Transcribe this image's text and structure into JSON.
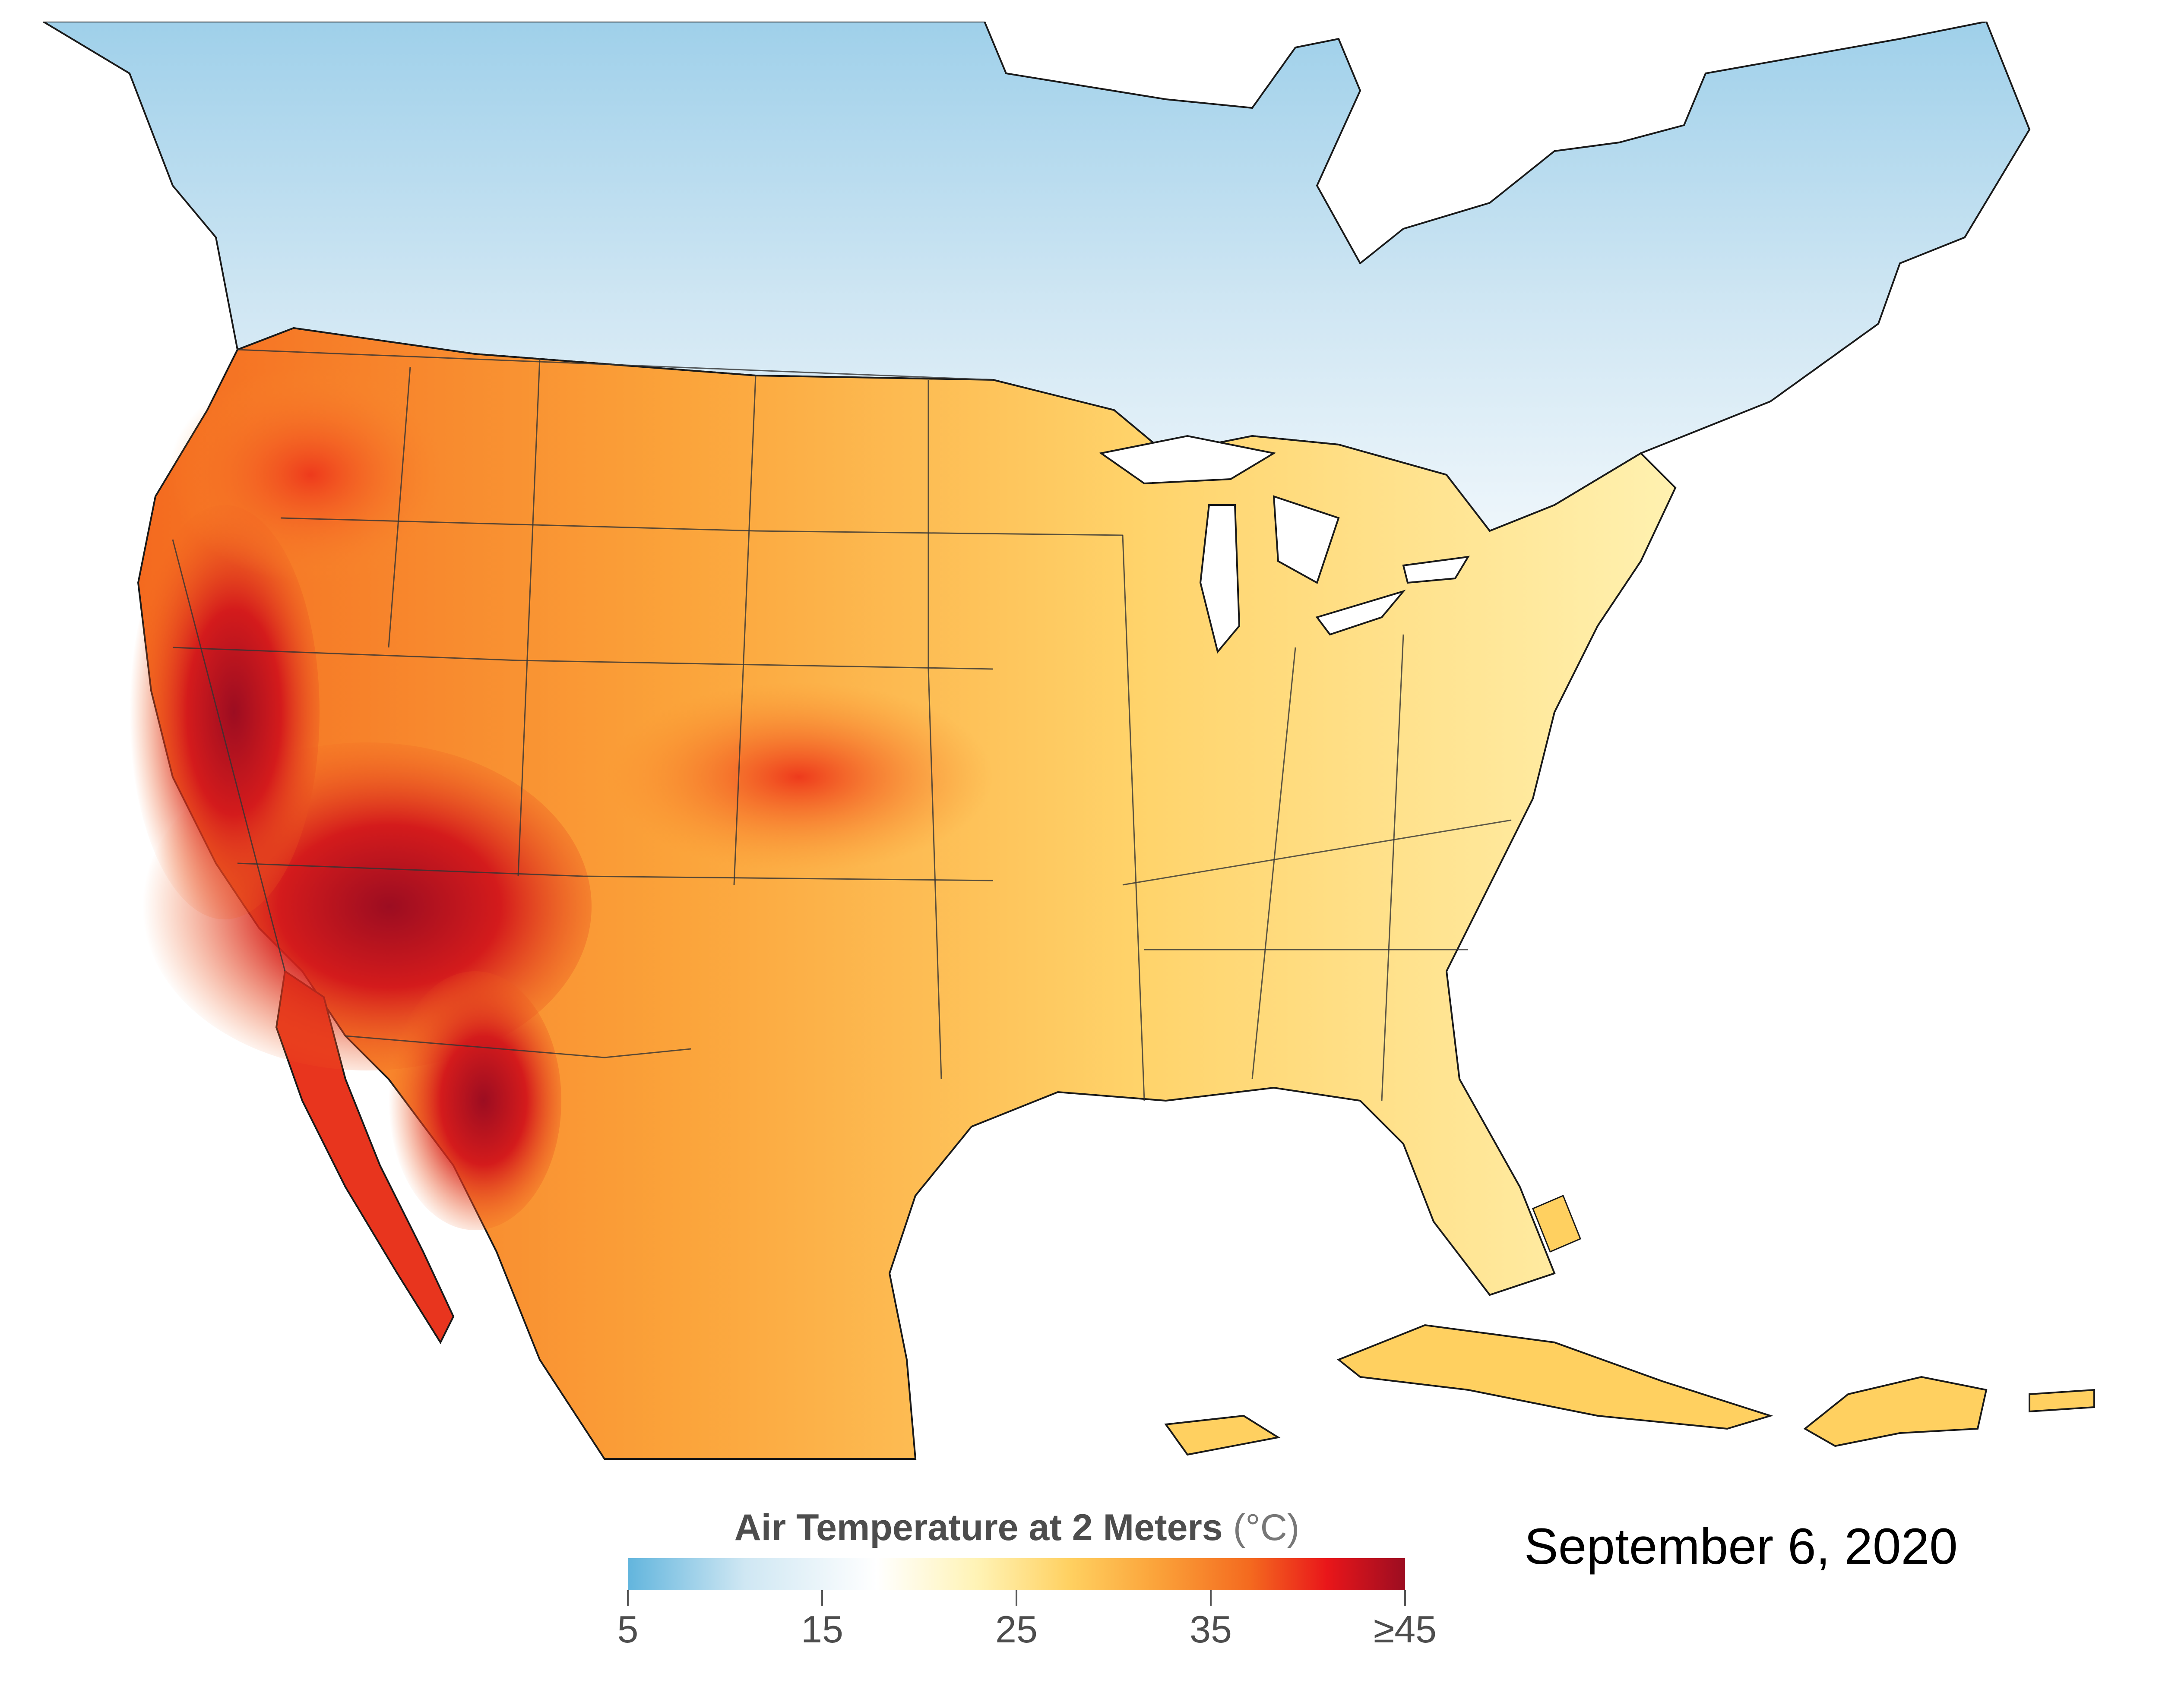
{
  "map": {
    "variable": "Air Temperature at 2 Meters",
    "date": "September 6, 2020",
    "region": "North America",
    "colors": {
      "ocean": "#ffffff",
      "coastline": "#1a1a1a",
      "cold_land": "#9fd0ea",
      "cool_land": "#e6f1f8",
      "mild_land": "#fff6cc",
      "warm_land": "#ffcc55",
      "hot_land": "#f59b2b",
      "very_hot_land": "#e8351e",
      "extreme_land": "#a3071c"
    }
  },
  "legend": {
    "title": "Air Temperature at 2 Meters",
    "unit": "(°C)",
    "ticks": [
      {
        "label": "5",
        "value": 5
      },
      {
        "label": "15",
        "value": 15
      },
      {
        "label": "25",
        "value": 25
      },
      {
        "label": "35",
        "value": 35
      },
      {
        "label": "≥45",
        "value": 45
      }
    ],
    "range": [
      5,
      45
    ],
    "colors": [
      "#62b5dd",
      "#cfe7f3",
      "#ffffff",
      "#fff3b5",
      "#ffd060",
      "#fba33a",
      "#f46a1f",
      "#e9161a",
      "#9c0d21"
    ]
  }
}
